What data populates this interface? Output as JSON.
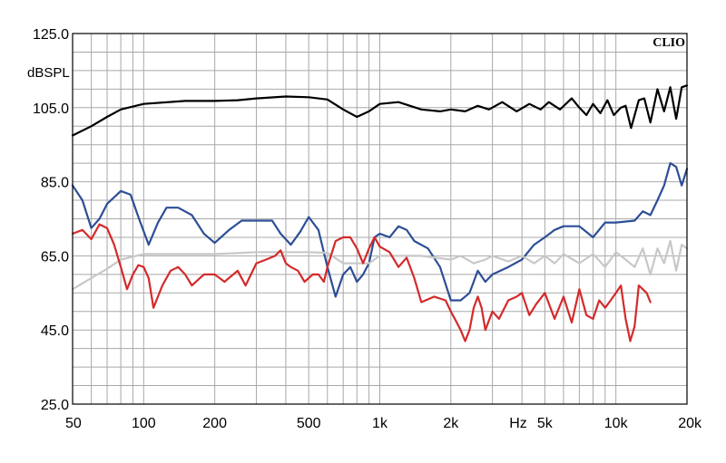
{
  "chart_data": {
    "type": "line",
    "brand": "CLIO",
    "ylabel": "dBSPL",
    "xlabel": "Hz",
    "xscale": "log",
    "xlim": [
      50,
      20000
    ],
    "ylim": [
      25,
      125
    ],
    "yticks": [
      {
        "value": 125,
        "label": "125.0"
      },
      {
        "value": 105,
        "label": "105.0"
      },
      {
        "value": 85,
        "label": "85.0"
      },
      {
        "value": 65,
        "label": "65.0"
      },
      {
        "value": 45,
        "label": "45.0"
      },
      {
        "value": 25,
        "label": "25.0"
      }
    ],
    "xticks": [
      {
        "value": 50,
        "label": "50"
      },
      {
        "value": 100,
        "label": "100"
      },
      {
        "value": 200,
        "label": "200"
      },
      {
        "value": 500,
        "label": "500"
      },
      {
        "value": 1000,
        "label": "1k"
      },
      {
        "value": 2000,
        "label": "2k"
      },
      {
        "value": 5000,
        "label": "5k"
      },
      {
        "value": 10000,
        "label": "10k"
      },
      {
        "value": 20000,
        "label": "20k"
      }
    ],
    "grid": true,
    "series": [
      {
        "color": "#000000",
        "points": [
          [
            50,
            97.5
          ],
          [
            60,
            100
          ],
          [
            70,
            102.5
          ],
          [
            80,
            104.5
          ],
          [
            100,
            106
          ],
          [
            150,
            106.8
          ],
          [
            200,
            106.8
          ],
          [
            250,
            107
          ],
          [
            300,
            107.5
          ],
          [
            400,
            108
          ],
          [
            500,
            107.8
          ],
          [
            600,
            107.2
          ],
          [
            700,
            104.5
          ],
          [
            800,
            102.5
          ],
          [
            900,
            104
          ],
          [
            1000,
            106
          ],
          [
            1200,
            106.5
          ],
          [
            1500,
            104.5
          ],
          [
            1800,
            104
          ],
          [
            2000,
            104.5
          ],
          [
            2300,
            104
          ],
          [
            2600,
            105.5
          ],
          [
            2900,
            104.5
          ],
          [
            3300,
            106.5
          ],
          [
            3800,
            104
          ],
          [
            4300,
            106
          ],
          [
            4800,
            104.5
          ],
          [
            5200,
            106.5
          ],
          [
            5800,
            104.5
          ],
          [
            6500,
            107.5
          ],
          [
            7000,
            105
          ],
          [
            7500,
            103
          ],
          [
            8000,
            106
          ],
          [
            8600,
            103.5
          ],
          [
            9200,
            107
          ],
          [
            9800,
            103
          ],
          [
            10500,
            105
          ],
          [
            11000,
            105.5
          ],
          [
            11600,
            99.5
          ],
          [
            12500,
            107
          ],
          [
            13200,
            107.5
          ],
          [
            14000,
            101
          ],
          [
            15000,
            110
          ],
          [
            16000,
            104
          ],
          [
            17000,
            110.5
          ],
          [
            18000,
            102
          ],
          [
            19000,
            110.5
          ],
          [
            20000,
            111
          ]
        ]
      },
      {
        "color": "#2d4e96",
        "points": [
          [
            50,
            84
          ],
          [
            55,
            80
          ],
          [
            60,
            72.5
          ],
          [
            65,
            75
          ],
          [
            70,
            79
          ],
          [
            80,
            82.5
          ],
          [
            88,
            81.5
          ],
          [
            95,
            75.5
          ],
          [
            105,
            68
          ],
          [
            115,
            74
          ],
          [
            125,
            78
          ],
          [
            140,
            78
          ],
          [
            160,
            76
          ],
          [
            180,
            71
          ],
          [
            200,
            68.5
          ],
          [
            230,
            72
          ],
          [
            260,
            74.5
          ],
          [
            300,
            74.5
          ],
          [
            350,
            74.5
          ],
          [
            380,
            71
          ],
          [
            420,
            68
          ],
          [
            460,
            71.5
          ],
          [
            500,
            75.5
          ],
          [
            550,
            72
          ],
          [
            600,
            62
          ],
          [
            650,
            54
          ],
          [
            700,
            60
          ],
          [
            750,
            62
          ],
          [
            800,
            58
          ],
          [
            850,
            60
          ],
          [
            900,
            63
          ],
          [
            950,
            70
          ],
          [
            1000,
            71
          ],
          [
            1100,
            70
          ],
          [
            1200,
            73
          ],
          [
            1300,
            72
          ],
          [
            1400,
            69
          ],
          [
            1600,
            67
          ],
          [
            1800,
            62
          ],
          [
            2000,
            53
          ],
          [
            2200,
            53
          ],
          [
            2400,
            55
          ],
          [
            2600,
            61
          ],
          [
            2800,
            58
          ],
          [
            3000,
            60
          ],
          [
            3500,
            62
          ],
          [
            4000,
            64
          ],
          [
            4500,
            68
          ],
          [
            5000,
            70
          ],
          [
            5500,
            72
          ],
          [
            6000,
            73
          ],
          [
            7000,
            73
          ],
          [
            8000,
            70
          ],
          [
            9000,
            74
          ],
          [
            10000,
            74
          ],
          [
            12000,
            74.5
          ],
          [
            13000,
            77
          ],
          [
            14000,
            76
          ],
          [
            15000,
            80
          ],
          [
            16000,
            84
          ],
          [
            17000,
            90
          ],
          [
            18000,
            89
          ],
          [
            19000,
            84
          ],
          [
            20000,
            88.5
          ]
        ]
      },
      {
        "color": "#c8c8c8",
        "points": [
          [
            50,
            56
          ],
          [
            60,
            59
          ],
          [
            70,
            61.5
          ],
          [
            80,
            64
          ],
          [
            100,
            65.5
          ],
          [
            150,
            65.5
          ],
          [
            200,
            65.5
          ],
          [
            300,
            66
          ],
          [
            400,
            66
          ],
          [
            500,
            66
          ],
          [
            600,
            65.8
          ],
          [
            700,
            63
          ],
          [
            800,
            63
          ],
          [
            900,
            63
          ],
          [
            1000,
            65
          ],
          [
            1500,
            65
          ],
          [
            2000,
            64
          ],
          [
            2200,
            65
          ],
          [
            2500,
            63
          ],
          [
            2800,
            64
          ],
          [
            3000,
            65
          ],
          [
            3500,
            63.5
          ],
          [
            4000,
            65
          ],
          [
            4500,
            63
          ],
          [
            5000,
            65
          ],
          [
            5500,
            63
          ],
          [
            6000,
            65.5
          ],
          [
            7000,
            63
          ],
          [
            8000,
            65.5
          ],
          [
            9000,
            62
          ],
          [
            10000,
            66
          ],
          [
            11000,
            64
          ],
          [
            12000,
            62
          ],
          [
            13000,
            67
          ],
          [
            14000,
            60
          ],
          [
            15000,
            67
          ],
          [
            16000,
            63
          ],
          [
            17000,
            69
          ],
          [
            18000,
            61
          ],
          [
            19000,
            68
          ],
          [
            20000,
            67
          ]
        ]
      },
      {
        "color": "#d42a2a",
        "points": [
          [
            50,
            71
          ],
          [
            55,
            72
          ],
          [
            60,
            69.5
          ],
          [
            65,
            73.5
          ],
          [
            70,
            72.5
          ],
          [
            75,
            68
          ],
          [
            80,
            62
          ],
          [
            85,
            56
          ],
          [
            90,
            60
          ],
          [
            95,
            62.5
          ],
          [
            100,
            62
          ],
          [
            105,
            59
          ],
          [
            110,
            51
          ],
          [
            120,
            57
          ],
          [
            130,
            61
          ],
          [
            140,
            62
          ],
          [
            150,
            60
          ],
          [
            160,
            57
          ],
          [
            180,
            60
          ],
          [
            200,
            60
          ],
          [
            220,
            58
          ],
          [
            250,
            61
          ],
          [
            270,
            57
          ],
          [
            300,
            63
          ],
          [
            330,
            64
          ],
          [
            360,
            65
          ],
          [
            380,
            66.5
          ],
          [
            400,
            63
          ],
          [
            420,
            62
          ],
          [
            450,
            61
          ],
          [
            480,
            58
          ],
          [
            520,
            60
          ],
          [
            550,
            60
          ],
          [
            580,
            58
          ],
          [
            600,
            62
          ],
          [
            650,
            69
          ],
          [
            700,
            70
          ],
          [
            750,
            70
          ],
          [
            800,
            67
          ],
          [
            850,
            63
          ],
          [
            900,
            67
          ],
          [
            950,
            70
          ],
          [
            1000,
            67.5
          ],
          [
            1100,
            66
          ],
          [
            1200,
            62
          ],
          [
            1300,
            64.5
          ],
          [
            1400,
            59
          ],
          [
            1500,
            52.5
          ],
          [
            1700,
            54
          ],
          [
            1900,
            53
          ],
          [
            2000,
            50
          ],
          [
            2100,
            47.5
          ],
          [
            2200,
            45
          ],
          [
            2300,
            42
          ],
          [
            2400,
            45
          ],
          [
            2500,
            51
          ],
          [
            2600,
            54
          ],
          [
            2700,
            51
          ],
          [
            2800,
            45
          ],
          [
            3000,
            50
          ],
          [
            3200,
            48
          ],
          [
            3500,
            53
          ],
          [
            3800,
            54
          ],
          [
            4000,
            55
          ],
          [
            4300,
            49
          ],
          [
            4600,
            52
          ],
          [
            5000,
            55
          ],
          [
            5500,
            48
          ],
          [
            6000,
            54
          ],
          [
            6500,
            47
          ],
          [
            7000,
            56
          ],
          [
            7500,
            49
          ],
          [
            8000,
            48
          ],
          [
            8500,
            53
          ],
          [
            9000,
            51
          ],
          [
            9500,
            53
          ],
          [
            10000,
            55
          ],
          [
            10500,
            57
          ],
          [
            11000,
            48
          ],
          [
            11500,
            42
          ],
          [
            12000,
            46
          ],
          [
            12500,
            57
          ],
          [
            13000,
            56
          ],
          [
            13500,
            55
          ],
          [
            14000,
            52.5
          ]
        ]
      }
    ]
  }
}
